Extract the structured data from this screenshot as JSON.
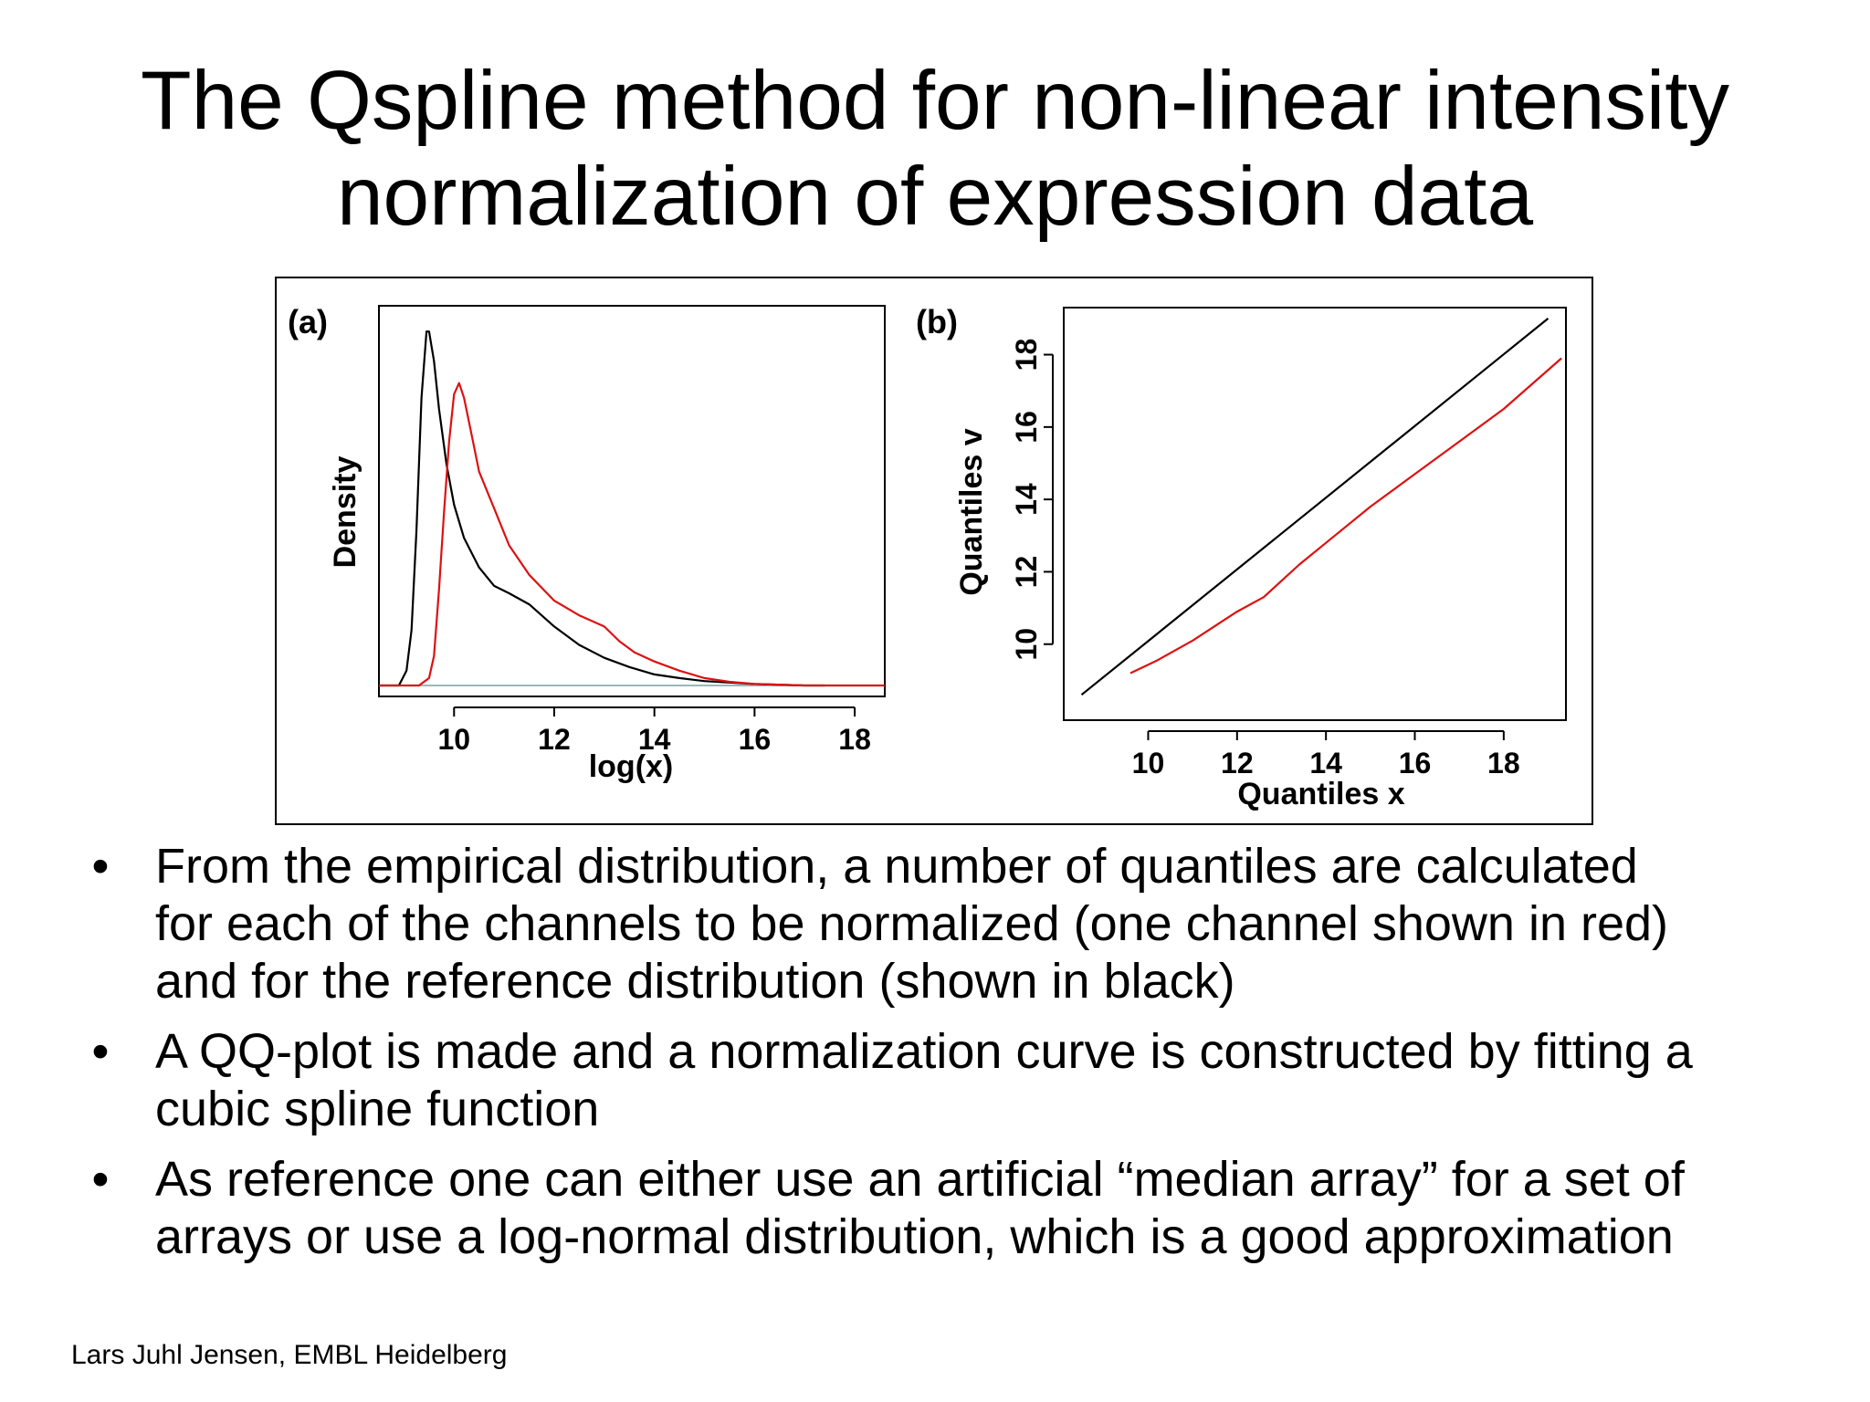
{
  "slide": {
    "title_lines": [
      "The Qspline method for non-linear intensity",
      "normalization of expression data"
    ],
    "bullets": [
      {
        "lines": [
          "From the empirical distribution, a number of quantiles are calculated",
          "for each of the channels to be normalized (one channel shown in red)",
          "and for the reference distribution (shown in black)"
        ]
      },
      {
        "lines": [
          "A QQ-plot is made and a normalization curve is constructed by fitting a",
          "cubic spline function"
        ]
      },
      {
        "lines": [
          "As reference one can either use an artificial “median array” for a set of",
          "arrays or use a log-normal distribution, which is a good approximation"
        ]
      }
    ],
    "footer": "Lars Juhl Jensen, EMBL Heidelberg",
    "bullet_glyph": "•"
  },
  "chart_data": [
    {
      "type": "line",
      "panel_label": "(a)",
      "xlabel": "log(x)",
      "ylabel": "Density",
      "xlim": [
        8.5,
        18.6
      ],
      "ylim": [
        0,
        1
      ],
      "xticks": [
        10,
        12,
        14,
        16,
        18
      ],
      "yticks": [],
      "colors": {
        "reference": "#000000",
        "channel": "#dd1111",
        "baseline": "#9ab8b8"
      },
      "series": [
        {
          "color": "#000000",
          "x": [
            8.5,
            8.9,
            9.05,
            9.15,
            9.25,
            9.35,
            9.45,
            9.5,
            9.6,
            9.7,
            9.85,
            10.0,
            10.2,
            10.5,
            10.8,
            11.1,
            11.5,
            12.0,
            12.5,
            13.0,
            13.5,
            14.0,
            14.5,
            15.0,
            15.5,
            16.0,
            17.0,
            17.4
          ],
          "y": [
            0.0,
            0.0,
            0.04,
            0.15,
            0.42,
            0.78,
            0.96,
            0.96,
            0.88,
            0.75,
            0.6,
            0.49,
            0.4,
            0.32,
            0.27,
            0.25,
            0.22,
            0.16,
            0.11,
            0.075,
            0.05,
            0.03,
            0.02,
            0.012,
            0.008,
            0.004,
            0.0,
            0.0
          ]
        },
        {
          "color": "#dd1111",
          "x": [
            8.5,
            9.3,
            9.5,
            9.6,
            9.7,
            9.8,
            9.9,
            10.0,
            10.1,
            10.2,
            10.35,
            10.5,
            10.8,
            11.1,
            11.5,
            12.0,
            12.5,
            13.0,
            13.3,
            13.6,
            14.0,
            14.5,
            15.0,
            15.5,
            16.0,
            17.0,
            18.6
          ],
          "y": [
            0.0,
            0.0,
            0.02,
            0.08,
            0.26,
            0.47,
            0.66,
            0.79,
            0.82,
            0.78,
            0.68,
            0.58,
            0.48,
            0.38,
            0.3,
            0.23,
            0.19,
            0.16,
            0.12,
            0.09,
            0.065,
            0.04,
            0.02,
            0.01,
            0.004,
            0.0,
            0.0
          ]
        }
      ]
    },
    {
      "type": "line",
      "panel_label": "(b)",
      "xlabel": "Quantiles x",
      "ylabel": "Quantiles v",
      "xlim": [
        8.1,
        19.4
      ],
      "ylim": [
        7.9,
        19.3
      ],
      "xticks": [
        10,
        12,
        14,
        16,
        18
      ],
      "yticks": [
        10,
        12,
        14,
        16,
        18
      ],
      "series": [
        {
          "color": "#000000",
          "x": [
            8.5,
            19.0
          ],
          "y": [
            8.6,
            19.0
          ]
        },
        {
          "color": "#dd1111",
          "x": [
            9.6,
            10.2,
            11.0,
            12.0,
            12.6,
            13.4,
            14.2,
            15.0,
            16.0,
            17.0,
            18.0,
            19.3
          ],
          "y": [
            9.2,
            9.55,
            10.1,
            10.9,
            11.3,
            12.2,
            13.0,
            13.8,
            14.7,
            15.6,
            16.5,
            17.9
          ]
        }
      ]
    }
  ]
}
